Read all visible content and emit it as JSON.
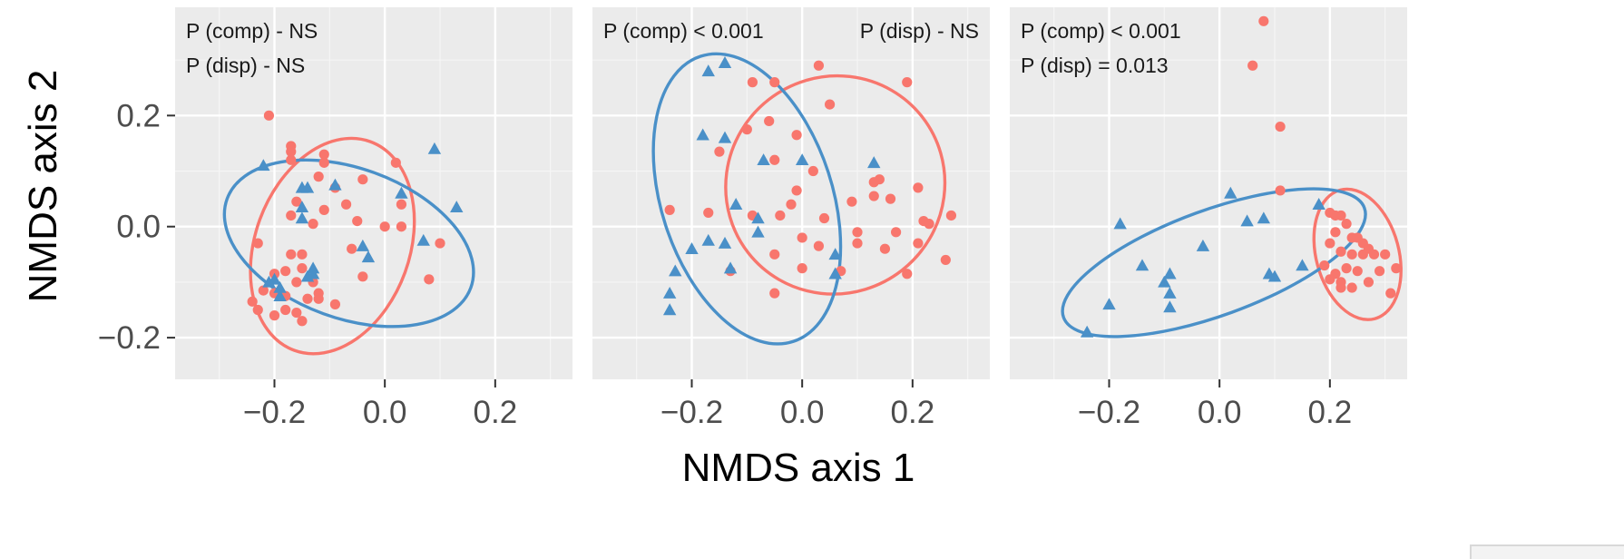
{
  "chart_data": {
    "type": "scatter",
    "xlabel": "NMDS axis 1",
    "ylabel": "NMDS axis 2",
    "xlim": [
      -0.38,
      0.34
    ],
    "ylim": [
      -0.275,
      0.395
    ],
    "x_ticks": [
      -0.2,
      0.0,
      0.2
    ],
    "x_tick_labels": [
      "−0.2",
      "0.0",
      "0.2"
    ],
    "y_ticks": [
      -0.2,
      0.0,
      0.2
    ],
    "y_tick_labels": [
      "−0.2",
      "0.0",
      "0.2"
    ],
    "grid": true,
    "legend": "none",
    "colors": {
      "circle": "#F8766D",
      "triangle": "#4A90C8"
    },
    "panels": [
      {
        "annotations": [
          {
            "text": "P (comp) - NS",
            "position": "top-left-1"
          },
          {
            "text": "P (disp) - NS",
            "position": "top-left-2"
          }
        ],
        "series": [
          {
            "marker": "circle",
            "color": "#F8766D",
            "points": [
              [
                -0.21,
                0.2
              ],
              [
                -0.17,
                0.145
              ],
              [
                -0.17,
                0.135
              ],
              [
                -0.17,
                0.12
              ],
              [
                -0.11,
                0.13
              ],
              [
                -0.11,
                0.115
              ],
              [
                0.02,
                0.115
              ],
              [
                -0.12,
                0.09
              ],
              [
                -0.04,
                0.085
              ],
              [
                -0.09,
                0.07
              ],
              [
                -0.16,
                0.045
              ],
              [
                -0.07,
                0.04
              ],
              [
                0.03,
                0.04
              ],
              [
                -0.17,
                0.02
              ],
              [
                -0.11,
                0.03
              ],
              [
                -0.13,
                0.005
              ],
              [
                -0.05,
                0.01
              ],
              [
                0.0,
                0.0
              ],
              [
                0.03,
                0.0
              ],
              [
                -0.23,
                -0.03
              ],
              [
                -0.17,
                -0.05
              ],
              [
                -0.15,
                -0.05
              ],
              [
                -0.15,
                -0.075
              ],
              [
                -0.18,
                -0.08
              ],
              [
                -0.2,
                -0.085
              ],
              [
                -0.06,
                -0.04
              ],
              [
                -0.16,
                -0.1
              ],
              [
                -0.13,
                -0.1
              ],
              [
                -0.12,
                -0.12
              ],
              [
                -0.09,
                -0.14
              ],
              [
                -0.12,
                -0.13
              ],
              [
                -0.14,
                -0.13
              ],
              [
                -0.18,
                -0.125
              ],
              [
                -0.2,
                -0.12
              ],
              [
                -0.22,
                -0.115
              ],
              [
                -0.24,
                -0.135
              ],
              [
                -0.23,
                -0.15
              ],
              [
                -0.2,
                -0.16
              ],
              [
                -0.18,
                -0.15
              ],
              [
                -0.16,
                -0.155
              ],
              [
                -0.15,
                -0.17
              ],
              [
                -0.04,
                -0.09
              ],
              [
                0.1,
                -0.03
              ],
              [
                0.08,
                -0.095
              ]
            ]
          },
          {
            "marker": "triangle",
            "color": "#4A90C8",
            "points": [
              [
                -0.22,
                0.11
              ],
              [
                -0.15,
                0.07
              ],
              [
                -0.14,
                0.07
              ],
              [
                -0.09,
                0.075
              ],
              [
                0.03,
                0.06
              ],
              [
                0.09,
                0.14
              ],
              [
                0.13,
                0.035
              ],
              [
                -0.15,
                0.035
              ],
              [
                -0.15,
                0.015
              ],
              [
                -0.04,
                -0.035
              ],
              [
                -0.03,
                -0.055
              ],
              [
                0.07,
                -0.025
              ],
              [
                -0.13,
                -0.075
              ],
              [
                -0.14,
                -0.09
              ],
              [
                -0.13,
                -0.085
              ],
              [
                -0.2,
                -0.095
              ],
              [
                -0.19,
                -0.11
              ],
              [
                -0.21,
                -0.1
              ],
              [
                -0.19,
                -0.125
              ]
            ]
          }
        ],
        "ellipses": [
          {
            "color": "#F8766D",
            "center": [
              -0.095,
              -0.035
            ],
            "semi_axes": [
              0.14,
              0.2
            ],
            "rotation_deg": 20
          },
          {
            "color": "#4A90C8",
            "center": [
              -0.065,
              -0.03
            ],
            "semi_axes": [
              0.235,
              0.135
            ],
            "rotation_deg": 20
          }
        ]
      },
      {
        "annotations": [
          {
            "text": "P (comp) < 0.001",
            "position": "top-left-1"
          },
          {
            "text": "P (disp) - NS",
            "position": "top-right-1"
          }
        ],
        "series": [
          {
            "marker": "circle",
            "color": "#F8766D",
            "points": [
              [
                0.03,
                0.29
              ],
              [
                -0.05,
                0.26
              ],
              [
                -0.09,
                0.26
              ],
              [
                0.19,
                0.26
              ],
              [
                0.05,
                0.22
              ],
              [
                -0.06,
                0.19
              ],
              [
                -0.1,
                0.175
              ],
              [
                -0.01,
                0.165
              ],
              [
                -0.15,
                0.135
              ],
              [
                -0.05,
                0.12
              ],
              [
                0.02,
                0.1
              ],
              [
                0.14,
                0.085
              ],
              [
                0.13,
                0.08
              ],
              [
                0.21,
                0.07
              ],
              [
                -0.01,
                0.065
              ],
              [
                0.13,
                0.055
              ],
              [
                0.16,
                0.05
              ],
              [
                0.09,
                0.045
              ],
              [
                -0.02,
                0.04
              ],
              [
                -0.04,
                0.02
              ],
              [
                -0.17,
                0.025
              ],
              [
                -0.24,
                0.03
              ],
              [
                -0.09,
                0.02
              ],
              [
                0.04,
                0.015
              ],
              [
                0.27,
                0.02
              ],
              [
                0.22,
                0.01
              ],
              [
                0.23,
                0.005
              ],
              [
                0.1,
                -0.01
              ],
              [
                0.17,
                -0.01
              ],
              [
                0.0,
                -0.02
              ],
              [
                0.1,
                -0.03
              ],
              [
                0.03,
                -0.035
              ],
              [
                0.21,
                -0.03
              ],
              [
                0.15,
                -0.04
              ],
              [
                -0.05,
                -0.05
              ],
              [
                0.26,
                -0.06
              ],
              [
                0.19,
                -0.085
              ],
              [
                0.07,
                -0.08
              ],
              [
                -0.13,
                -0.08
              ],
              [
                0.0,
                -0.075
              ],
              [
                -0.05,
                -0.12
              ]
            ]
          },
          {
            "marker": "triangle",
            "color": "#4A90C8",
            "points": [
              [
                -0.17,
                0.28
              ],
              [
                -0.14,
                0.295
              ],
              [
                -0.18,
                0.165
              ],
              [
                -0.14,
                0.16
              ],
              [
                -0.07,
                0.12
              ],
              [
                0.0,
                0.12
              ],
              [
                0.13,
                0.115
              ],
              [
                -0.12,
                0.04
              ],
              [
                -0.08,
                0.015
              ],
              [
                -0.08,
                -0.01
              ],
              [
                -0.2,
                -0.04
              ],
              [
                -0.14,
                -0.03
              ],
              [
                -0.17,
                -0.025
              ],
              [
                -0.23,
                -0.08
              ],
              [
                -0.24,
                -0.12
              ],
              [
                -0.24,
                -0.15
              ],
              [
                0.06,
                -0.05
              ],
              [
                0.06,
                -0.085
              ],
              [
                -0.13,
                -0.075
              ]
            ]
          }
        ],
        "ellipses": [
          {
            "color": "#F8766D",
            "center": [
              0.06,
              0.075
            ],
            "semi_axes": [
              0.2,
              0.195
            ],
            "rotation_deg": -38
          },
          {
            "color": "#4A90C8",
            "center": [
              -0.1,
              0.05
            ],
            "semi_axes": [
              0.155,
              0.27
            ],
            "rotation_deg": -18
          }
        ]
      },
      {
        "annotations": [
          {
            "text": "P (comp) < 0.001",
            "position": "top-left-1"
          },
          {
            "text": "P (disp) = 0.013",
            "position": "top-left-2"
          }
        ],
        "series": [
          {
            "marker": "circle",
            "color": "#F8766D",
            "points": [
              [
                0.08,
                0.37
              ],
              [
                0.06,
                0.29
              ],
              [
                0.11,
                0.18
              ],
              [
                0.11,
                0.065
              ],
              [
                0.22,
                0.02
              ],
              [
                0.23,
                0.005
              ],
              [
                0.21,
                -0.01
              ],
              [
                0.24,
                -0.02
              ],
              [
                0.25,
                -0.02
              ],
              [
                0.26,
                -0.03
              ],
              [
                0.2,
                -0.03
              ],
              [
                0.27,
                -0.04
              ],
              [
                0.22,
                -0.045
              ],
              [
                0.24,
                -0.05
              ],
              [
                0.26,
                -0.05
              ],
              [
                0.28,
                -0.05
              ],
              [
                0.3,
                -0.05
              ],
              [
                0.32,
                -0.075
              ],
              [
                0.23,
                -0.075
              ],
              [
                0.25,
                -0.08
              ],
              [
                0.21,
                -0.085
              ],
              [
                0.19,
                -0.07
              ],
              [
                0.29,
                -0.08
              ],
              [
                0.2,
                -0.095
              ],
              [
                0.22,
                -0.1
              ],
              [
                0.27,
                -0.1
              ],
              [
                0.24,
                -0.11
              ],
              [
                0.31,
                -0.12
              ],
              [
                0.22,
                -0.11
              ],
              [
                0.21,
                0.02
              ],
              [
                0.2,
                0.025
              ]
            ]
          },
          {
            "marker": "triangle",
            "color": "#4A90C8",
            "points": [
              [
                0.02,
                0.06
              ],
              [
                0.18,
                0.04
              ],
              [
                -0.18,
                0.005
              ],
              [
                0.05,
                0.01
              ],
              [
                0.08,
                0.015
              ],
              [
                -0.03,
                -0.035
              ],
              [
                -0.14,
                -0.07
              ],
              [
                -0.09,
                -0.085
              ],
              [
                -0.1,
                -0.1
              ],
              [
                -0.09,
                -0.12
              ],
              [
                0.09,
                -0.085
              ],
              [
                0.1,
                -0.09
              ],
              [
                0.15,
                -0.07
              ],
              [
                -0.09,
                -0.145
              ],
              [
                -0.2,
                -0.14
              ],
              [
                -0.24,
                -0.19
              ]
            ]
          }
        ],
        "ellipses": [
          {
            "color": "#F8766D",
            "center": [
              0.25,
              -0.05
            ],
            "semi_axes": [
              0.075,
              0.12
            ],
            "rotation_deg": -15
          },
          {
            "color": "#4A90C8",
            "center": [
              -0.01,
              -0.065
            ],
            "semi_axes": [
              0.29,
              0.095
            ],
            "rotation_deg": -20
          }
        ]
      }
    ]
  }
}
